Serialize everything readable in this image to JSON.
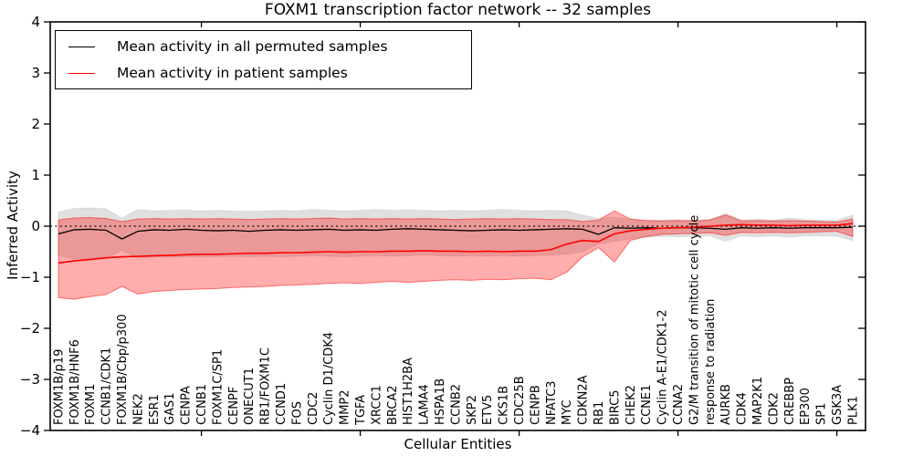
{
  "figure": {
    "background": "#ffffff",
    "frame_color": "#000000"
  },
  "legend": {
    "items": [
      {
        "label": "Mean activity in all permuted samples",
        "color": "#000000"
      },
      {
        "label": "Mean activity in patient samples",
        "color": "#ff0000"
      }
    ]
  },
  "chart_data": {
    "type": "line",
    "title": "FOXM1 transcription factor network -- 32 samples",
    "xlabel": "Cellular Entities",
    "ylabel": "Inferred Activity",
    "ylim": [
      -4,
      4
    ],
    "yticks": [
      4,
      3,
      2,
      1,
      0,
      -1,
      -2,
      -3,
      -4
    ],
    "xtick_indices": [
      9,
      19,
      29,
      39,
      49
    ],
    "grid": false,
    "legend_position": "upper left",
    "zero_line": 0,
    "categories": [
      "FOXM1B/p19",
      "FOXM1B/HNF6",
      "FOXM1",
      "CCNB1/CDK1",
      "FOXM1B/Cbp/p300",
      "NEK2",
      "ESR1",
      "GAS1",
      "CENPA",
      "CCNB1",
      "FOXM1C/SP1",
      "CENPF",
      "ONECUT1",
      "RB1/FOXM1C",
      "CCND1",
      "FOS",
      "CDC2",
      "Cyclin D1/CDK4",
      "MMP2",
      "TGFA",
      "XRCC1",
      "BRCA2",
      "HIST1H2BA",
      "LAMA4",
      "HSPA1B",
      "CCNB2",
      "SKP2",
      "ETV5",
      "CKS1B",
      "CDC25B",
      "CENPB",
      "NFATC3",
      "MYC",
      "CDKN2A",
      "RB1",
      "BIRC5",
      "CHEK2",
      "CCNE1",
      "Cyclin A-E1/CDK1-2",
      "CCNA2",
      "G2/M transition of mitotic cell cycle",
      "response to radiation",
      "AURKB",
      "CDK4",
      "MAP2K1",
      "CDK2",
      "CREBBP",
      "EP300",
      "SP1",
      "GSK3A",
      "PLK1"
    ],
    "series": [
      {
        "name": "Mean activity in all permuted samples",
        "color": "#000000",
        "width": 1.3,
        "values": [
          -0.15,
          -0.07,
          -0.06,
          -0.08,
          -0.25,
          -0.1,
          -0.07,
          -0.08,
          -0.06,
          -0.08,
          -0.09,
          -0.08,
          -0.1,
          -0.08,
          -0.07,
          -0.08,
          -0.07,
          -0.06,
          -0.08,
          -0.07,
          -0.08,
          -0.06,
          -0.05,
          -0.06,
          -0.07,
          -0.08,
          -0.09,
          -0.08,
          -0.07,
          -0.08,
          -0.07,
          -0.06,
          -0.05,
          -0.06,
          -0.16,
          -0.03,
          -0.04,
          -0.03,
          -0.04,
          -0.03,
          -0.03,
          -0.04,
          -0.06,
          -0.03,
          -0.04,
          -0.03,
          -0.04,
          -0.03,
          -0.03,
          -0.03,
          -0.02
        ]
      },
      {
        "name": "Mean activity in patient samples",
        "color": "#ff0000",
        "width": 1.6,
        "values": [
          -0.72,
          -0.68,
          -0.65,
          -0.62,
          -0.6,
          -0.59,
          -0.58,
          -0.57,
          -0.56,
          -0.55,
          -0.55,
          -0.54,
          -0.53,
          -0.53,
          -0.52,
          -0.52,
          -0.51,
          -0.5,
          -0.51,
          -0.5,
          -0.5,
          -0.49,
          -0.49,
          -0.48,
          -0.49,
          -0.49,
          -0.5,
          -0.49,
          -0.5,
          -0.49,
          -0.49,
          -0.46,
          -0.35,
          -0.28,
          -0.3,
          -0.15,
          -0.09,
          -0.06,
          -0.04,
          -0.03,
          -0.02,
          0.0,
          0.02,
          0.03,
          0.02,
          0.02,
          0.01,
          0.02,
          0.02,
          0.02,
          0.05
        ]
      }
    ],
    "bands": [
      {
        "name": "permuted-range",
        "fill": "rgba(0,0,0,0.12)",
        "edge": "rgba(0,0,0,0.07)",
        "upper": [
          0.28,
          0.35,
          0.36,
          0.34,
          0.16,
          0.33,
          0.3,
          0.31,
          0.32,
          0.3,
          0.31,
          0.3,
          0.29,
          0.3,
          0.31,
          0.3,
          0.33,
          0.31,
          0.3,
          0.31,
          0.33,
          0.31,
          0.32,
          0.31,
          0.3,
          0.31,
          0.3,
          0.31,
          0.33,
          0.31,
          0.3,
          0.31,
          0.3,
          0.22,
          0.15,
          0.18,
          0.13,
          0.12,
          0.12,
          0.13,
          0.12,
          0.13,
          0.25,
          0.12,
          0.14,
          0.12,
          0.16,
          0.13,
          0.12,
          0.12,
          0.22
        ],
        "lower": [
          -0.58,
          -0.64,
          -0.65,
          -0.63,
          -0.48,
          -0.62,
          -0.6,
          -0.61,
          -0.6,
          -0.61,
          -0.6,
          -0.59,
          -0.6,
          -0.59,
          -0.6,
          -0.59,
          -0.58,
          -0.59,
          -0.6,
          -0.59,
          -0.58,
          -0.59,
          -0.58,
          -0.57,
          -0.58,
          -0.59,
          -0.58,
          -0.59,
          -0.58,
          -0.59,
          -0.58,
          -0.57,
          -0.55,
          -0.5,
          -0.35,
          -0.3,
          -0.25,
          -0.22,
          -0.2,
          -0.21,
          -0.2,
          -0.19,
          -0.3,
          -0.19,
          -0.21,
          -0.19,
          -0.22,
          -0.19,
          -0.19,
          -0.2,
          -0.28
        ]
      },
      {
        "name": "patient-range",
        "fill": "rgba(255,0,0,0.32)",
        "edge": "rgba(255,0,0,0.50)",
        "upper": [
          0.12,
          0.16,
          0.17,
          0.15,
          0.09,
          0.14,
          0.15,
          0.14,
          0.15,
          0.14,
          0.15,
          0.14,
          0.13,
          0.14,
          0.15,
          0.14,
          0.15,
          0.16,
          0.14,
          0.15,
          0.14,
          0.15,
          0.14,
          0.15,
          0.14,
          0.13,
          0.14,
          0.15,
          0.14,
          0.15,
          0.14,
          0.13,
          0.13,
          0.09,
          0.12,
          0.3,
          0.14,
          0.11,
          0.1,
          0.11,
          0.1,
          0.12,
          0.22,
          0.1,
          0.11,
          0.1,
          0.11,
          0.1,
          0.09,
          0.08,
          0.14
        ],
        "lower": [
          -1.4,
          -1.43,
          -1.38,
          -1.34,
          -1.18,
          -1.33,
          -1.28,
          -1.26,
          -1.24,
          -1.23,
          -1.22,
          -1.2,
          -1.19,
          -1.18,
          -1.16,
          -1.15,
          -1.14,
          -1.12,
          -1.11,
          -1.12,
          -1.1,
          -1.08,
          -1.1,
          -1.08,
          -1.06,
          -1.05,
          -1.06,
          -1.04,
          -1.05,
          -1.03,
          -1.02,
          -1.05,
          -0.9,
          -0.6,
          -0.42,
          -0.7,
          -0.28,
          -0.2,
          -0.16,
          -0.15,
          -0.14,
          -0.13,
          -0.18,
          -0.12,
          -0.13,
          -0.12,
          -0.13,
          -0.12,
          -0.11,
          -0.1,
          -0.2
        ]
      }
    ]
  }
}
